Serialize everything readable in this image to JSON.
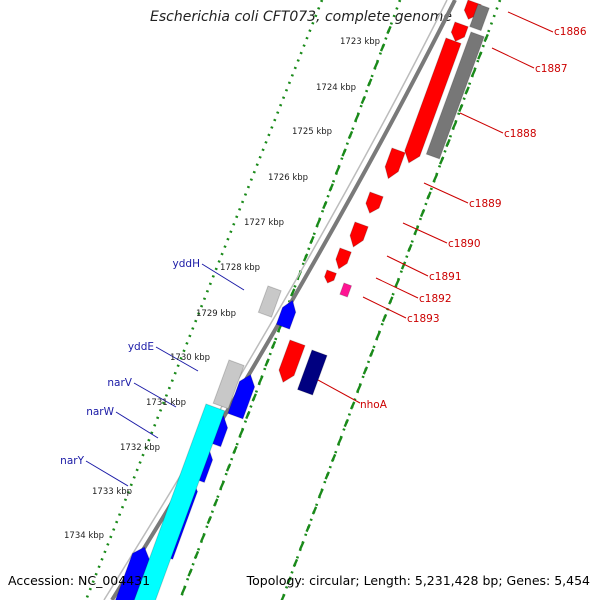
{
  "title": "Escherichia coli CFT073, complete genome",
  "footer": {
    "accession": "Accession: NC_004431",
    "topology": "Topology: circular; Length: 5,231,428 bp; Genes: 5,454"
  },
  "ruler": {
    "labels": [
      "1723 kbp",
      "1724 kbp",
      "1725 kbp",
      "1726 kbp",
      "1727 kbp",
      "1728 kbp",
      "1729 kbp",
      "1730 kbp",
      "1731 kbp",
      "1732 kbp",
      "1733 kbp",
      "1734 kbp"
    ]
  },
  "genes_right": [
    {
      "name": "c1886"
    },
    {
      "name": "c1887"
    },
    {
      "name": "c1888"
    },
    {
      "name": "c1889"
    },
    {
      "name": "c1890"
    },
    {
      "name": "c1891"
    },
    {
      "name": "c1892"
    },
    {
      "name": "c1893"
    },
    {
      "name": "nhoA"
    }
  ],
  "genes_left": [
    {
      "name": "yddH"
    },
    {
      "name": "yddE"
    },
    {
      "name": "narV"
    },
    {
      "name": "narW"
    },
    {
      "name": "narY"
    }
  ],
  "colors": {
    "forward_red": "#ff0000",
    "other_gray": "#777777",
    "dark_navy": "#000080",
    "pink": "#ff1493",
    "blue": "#0000ff",
    "light_gray": "#c8c8c8",
    "cyan": "#00ffff",
    "green_ruler": "#1a8a1a",
    "backbone": "#7a7a7a",
    "label_red": "#cc0000",
    "label_blue": "#1a1aa6"
  }
}
